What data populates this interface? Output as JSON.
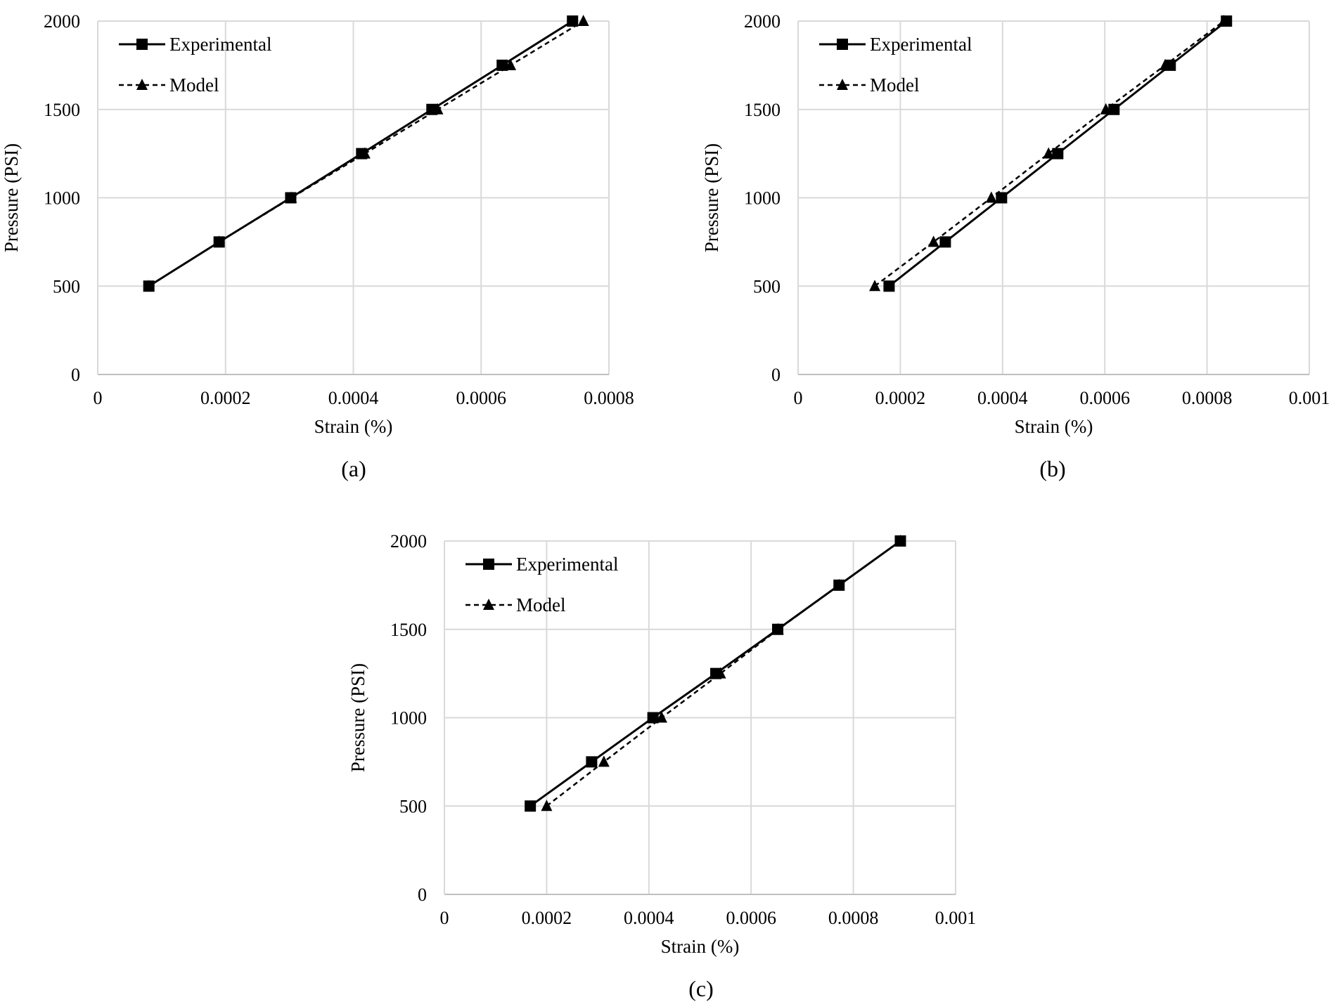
{
  "chart_data": [
    {
      "type": "line",
      "panel_label": "(a)",
      "xlabel": "Strain (%)",
      "ylabel": "Pressure (PSI)",
      "xlim": [
        0,
        0.0008
      ],
      "ylim": [
        0,
        2000
      ],
      "x_ticks": [
        0,
        0.0002,
        0.0004,
        0.0006,
        0.0008
      ],
      "x_tick_labels": [
        "0",
        "0.0002",
        "0.0004",
        "0.0006",
        "0.0008"
      ],
      "y_ticks": [
        0,
        500,
        1000,
        1500,
        2000
      ],
      "y_tick_labels": [
        "0",
        "500",
        "1000",
        "1500",
        "2000"
      ],
      "grid": true,
      "legend_position": "top-left",
      "series": [
        {
          "name": "Experimental",
          "marker": "square",
          "line": "solid",
          "x": [
            8e-05,
            0.00019,
            0.000302,
            0.000413,
            0.000523,
            0.000633,
            0.000743
          ],
          "y": [
            500,
            750,
            1000,
            1250,
            1500,
            1750,
            2000
          ]
        },
        {
          "name": "Model",
          "marker": "triangle",
          "line": "dashed",
          "x": [
            8e-05,
            0.00019,
            0.000303,
            0.000418,
            0.000532,
            0.000646,
            0.00076
          ],
          "y": [
            500,
            750,
            1000,
            1250,
            1500,
            1750,
            2000
          ]
        }
      ]
    },
    {
      "type": "line",
      "panel_label": "(b)",
      "xlabel": "Strain (%)",
      "ylabel": "Pressure (PSI)",
      "xlim": [
        0,
        0.001
      ],
      "ylim": [
        0,
        2000
      ],
      "x_ticks": [
        0,
        0.0002,
        0.0004,
        0.0006,
        0.0008,
        0.001
      ],
      "x_tick_labels": [
        "0",
        "0.0002",
        "0.0004",
        "0.0006",
        "0.0008",
        "0.001"
      ],
      "y_ticks": [
        0,
        500,
        1000,
        1500,
        2000
      ],
      "y_tick_labels": [
        "0",
        "500",
        "1000",
        "1500",
        "2000"
      ],
      "grid": true,
      "legend_position": "top-left",
      "series": [
        {
          "name": "Experimental",
          "marker": "square",
          "line": "solid",
          "x": [
            0.000178,
            0.000288,
            0.000398,
            0.000508,
            0.000618,
            0.000728,
            0.000838
          ],
          "y": [
            500,
            750,
            1000,
            1250,
            1500,
            1750,
            2000
          ]
        },
        {
          "name": "Model",
          "marker": "triangle",
          "line": "dashed",
          "x": [
            0.00015,
            0.000265,
            0.000378,
            0.00049,
            0.000602,
            0.000718,
            0.000833
          ],
          "y": [
            500,
            750,
            1000,
            1250,
            1500,
            1750,
            2000
          ]
        }
      ]
    },
    {
      "type": "line",
      "panel_label": "(c)",
      "xlabel": "Strain (%)",
      "ylabel": "Pressure (PSI)",
      "xlim": [
        0,
        0.001
      ],
      "ylim": [
        0,
        2000
      ],
      "x_ticks": [
        0,
        0.0002,
        0.0004,
        0.0006,
        0.0008,
        0.001
      ],
      "x_tick_labels": [
        "0",
        "0.0002",
        "0.0004",
        "0.0006",
        "0.0008",
        "0.001"
      ],
      "y_ticks": [
        0,
        500,
        1000,
        1500,
        2000
      ],
      "y_tick_labels": [
        "0",
        "500",
        "1000",
        "1500",
        "2000"
      ],
      "grid": true,
      "legend_position": "top-left",
      "series": [
        {
          "name": "Experimental",
          "marker": "square",
          "line": "solid",
          "x": [
            0.000168,
            0.000288,
            0.000408,
            0.000531,
            0.000652,
            0.000772,
            0.000892
          ],
          "y": [
            500,
            750,
            1000,
            1250,
            1500,
            1750,
            2000
          ]
        },
        {
          "name": "Model",
          "marker": "triangle",
          "line": "dashed",
          "x": [
            0.0002,
            0.000312,
            0.000425,
            0.00054,
            0.000653,
            0.000772,
            0.000892
          ],
          "y": [
            500,
            750,
            1000,
            1250,
            1500,
            1750,
            2000
          ]
        }
      ]
    }
  ]
}
